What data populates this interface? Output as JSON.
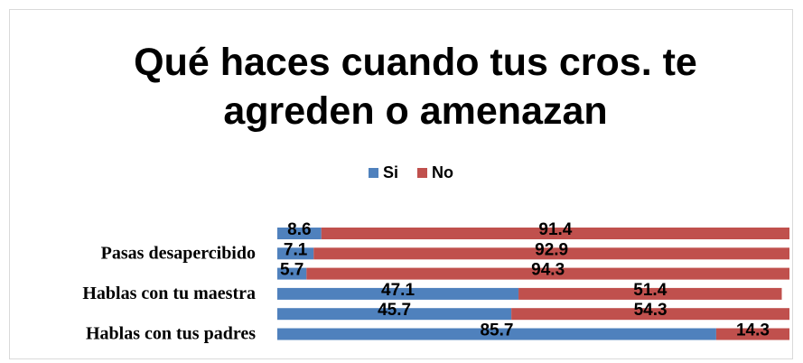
{
  "chart_data": {
    "type": "stacked-bar",
    "orientation": "horizontal",
    "title": "Qué haces cuando tus cros. te agreden o amenazan",
    "categories": [
      null,
      "Pasas desapercibido",
      null,
      "Hablas con tu maestra",
      null,
      "Hablas con tus padres"
    ],
    "series": [
      {
        "name": "Si",
        "color": "#4f81bd",
        "values": [
          8.6,
          7.1,
          5.7,
          47.1,
          45.7,
          85.7
        ]
      },
      {
        "name": "No",
        "color": "#c0504d",
        "values": [
          91.4,
          92.9,
          94.3,
          51.4,
          54.3,
          14.3
        ]
      }
    ],
    "xlim": [
      0,
      100
    ],
    "legend": "top"
  }
}
